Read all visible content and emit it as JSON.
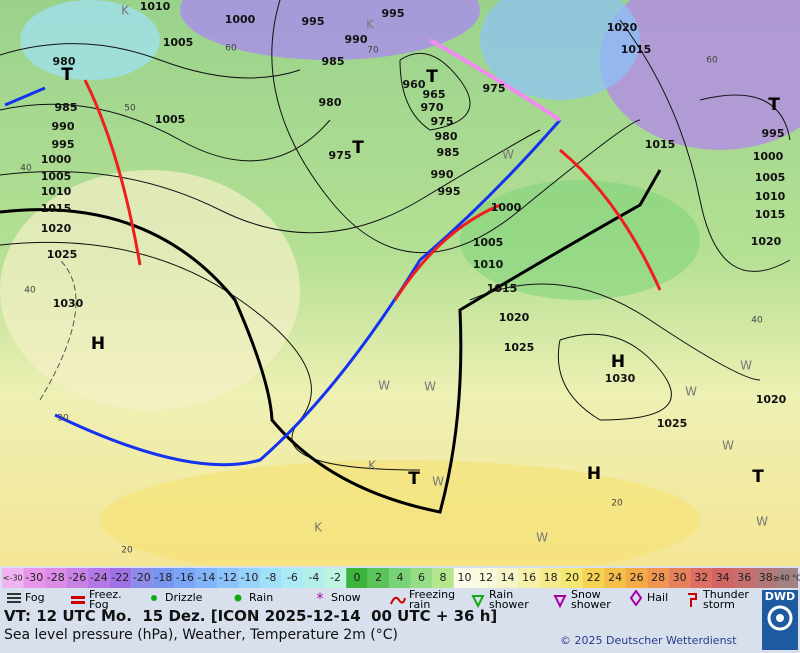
{
  "map": {
    "pressure_labels": [
      1010,
      1000,
      995,
      995,
      1005,
      990,
      985,
      980,
      960,
      965,
      970,
      975,
      980,
      985,
      990,
      995,
      975,
      980,
      975,
      985,
      990,
      995,
      1000,
      1005,
      1010,
      1015,
      1020,
      1025,
      1030,
      1005,
      1000,
      1005,
      1010,
      1015,
      1020,
      1025,
      1030,
      1025,
      1020,
      1020,
      1015,
      1015,
      995,
      1000,
      1005,
      1010,
      1015,
      1020
    ],
    "isotherm_labels": [
      60,
      70,
      50,
      40,
      40,
      30,
      20,
      40,
      20,
      60
    ],
    "centers": [
      "T",
      "T",
      "T",
      "T",
      "H",
      "H",
      "H",
      "T",
      "T"
    ],
    "weather_codes": [
      "K",
      "K",
      "W",
      "W",
      "W",
      "W",
      "W",
      "K",
      "W",
      "W",
      "K",
      "W",
      "W"
    ]
  },
  "temperature_scale": [
    {
      "label": "<-30",
      "color": "#f0b4f0"
    },
    {
      "label": -30,
      "color": "#e896e8"
    },
    {
      "label": -28,
      "color": "#dc8ce6"
    },
    {
      "label": -26,
      "color": "#c882e6"
    },
    {
      "label": -24,
      "color": "#b478e6"
    },
    {
      "label": -22,
      "color": "#a070e6"
    },
    {
      "label": -20,
      "color": "#8c8ce8"
    },
    {
      "label": -18,
      "color": "#7896f0"
    },
    {
      "label": -16,
      "color": "#78a5f5"
    },
    {
      "label": -14,
      "color": "#82b4fa"
    },
    {
      "label": -12,
      "color": "#8cc3fa"
    },
    {
      "label": -10,
      "color": "#96d2fa"
    },
    {
      "label": -8,
      "color": "#a0e1fa"
    },
    {
      "label": -6,
      "color": "#aaebf5"
    },
    {
      "label": -4,
      "color": "#b4f0eb"
    },
    {
      "label": -2,
      "color": "#bef5e1"
    },
    {
      "label": 0,
      "color": "#3cb43c"
    },
    {
      "label": 2,
      "color": "#5ac35a"
    },
    {
      "label": 4,
      "color": "#78d278"
    },
    {
      "label": 6,
      "color": "#96dc82"
    },
    {
      "label": 8,
      "color": "#b4e68c"
    },
    {
      "label": 10,
      "color": "#fafae6"
    },
    {
      "label": 12,
      "color": "#fafadc"
    },
    {
      "label": 14,
      "color": "#f5f5c8"
    },
    {
      "label": 16,
      "color": "#f5f0aa"
    },
    {
      "label": 18,
      "color": "#f5eb8c"
    },
    {
      "label": 20,
      "color": "#f5e66e"
    },
    {
      "label": 22,
      "color": "#f5d250"
    },
    {
      "label": 24,
      "color": "#f5be46"
    },
    {
      "label": 26,
      "color": "#f5aa46"
    },
    {
      "label": 28,
      "color": "#f09650"
    },
    {
      "label": 30,
      "color": "#e6825a"
    },
    {
      "label": 32,
      "color": "#dc6e64"
    },
    {
      "label": 34,
      "color": "#d26464"
    },
    {
      "label": 36,
      "color": "#c86e6e"
    },
    {
      "label": 38,
      "color": "#b47878"
    },
    {
      "label": "≥40 °C",
      "color": "#a08282"
    }
  ],
  "legend": [
    "Fog",
    "Freez. Fog",
    "Drizzle",
    "Rain",
    "Snow",
    "Freezing rain",
    "Rain shower",
    "Snow shower",
    "Hail",
    "Thunder storm"
  ],
  "footer": {
    "valid_time": "VT: 12 UTC Mo.  15 Dez. [ICON 2025-12-14  00 UTC + 36 h]",
    "description": "Sea level pressure (hPa), Weather, Temperature 2m (°C)",
    "copyright": "© 2025 Deutscher Wetterdienst",
    "logo": "DWD"
  }
}
